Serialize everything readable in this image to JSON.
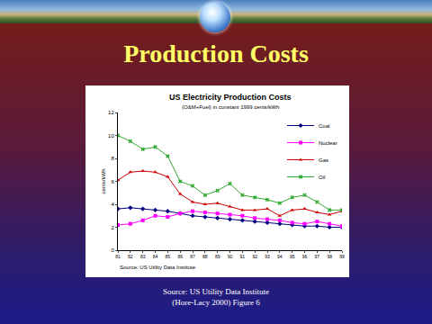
{
  "slide": {
    "title": "Production Costs",
    "source": [
      "Source: US Utility Data Institute",
      "(Hore-Lacy 2000)  Figure 6"
    ]
  },
  "chart_data": {
    "type": "line",
    "title": "US Electricity Production Costs",
    "subtitle": "(O&M+Fuel) in constant 1999 cents/kWh",
    "y_label": "cents/kWh",
    "annotations": [
      "Source: US Utility Data Institute"
    ],
    "x": [
      1981,
      1982,
      1983,
      1984,
      1985,
      1986,
      1987,
      1988,
      1989,
      1990,
      1991,
      1992,
      1993,
      1994,
      1995,
      1996,
      1997,
      1998,
      1999
    ],
    "series": [
      {
        "name": "Coal",
        "color": "#00007f",
        "marker": "diamond",
        "values": [
          3.6,
          3.7,
          3.6,
          3.5,
          3.4,
          3.2,
          3.0,
          2.9,
          2.8,
          2.7,
          2.6,
          2.5,
          2.4,
          2.3,
          2.2,
          2.1,
          2.1,
          2.0,
          2.0
        ]
      },
      {
        "name": "Nuclear",
        "color": "#ff00ff",
        "marker": "square",
        "values": [
          2.2,
          2.3,
          2.6,
          3.0,
          2.9,
          3.2,
          3.4,
          3.3,
          3.2,
          3.1,
          3.0,
          2.8,
          2.7,
          2.6,
          2.4,
          2.3,
          2.5,
          2.3,
          2.1
        ]
      },
      {
        "name": "Gas",
        "color": "#cc0000",
        "marker": "triangle-up",
        "values": [
          6.1,
          6.8,
          6.9,
          6.8,
          6.4,
          4.9,
          4.2,
          4.0,
          4.1,
          3.8,
          3.5,
          3.5,
          3.6,
          3.0,
          3.5,
          3.6,
          3.3,
          3.1,
          3.4
        ]
      },
      {
        "name": "Oil",
        "color": "#33aa33",
        "marker": "x",
        "values": [
          10.0,
          9.5,
          8.8,
          9.0,
          8.2,
          6.0,
          5.6,
          4.8,
          5.2,
          5.8,
          4.8,
          4.6,
          4.4,
          4.1,
          4.6,
          4.8,
          4.2,
          3.5,
          3.5
        ]
      }
    ],
    "xlim": [
      1981,
      1999
    ],
    "xticks": [
      {
        "value": 1981,
        "label": "81"
      },
      {
        "value": 1982,
        "label": "82"
      },
      {
        "value": 1983,
        "label": "83"
      },
      {
        "value": 1984,
        "label": "84"
      },
      {
        "value": 1985,
        "label": "85"
      },
      {
        "value": 1986,
        "label": "86"
      },
      {
        "value": 1987,
        "label": "87"
      },
      {
        "value": 1988,
        "label": "88"
      },
      {
        "value": 1989,
        "label": "89"
      },
      {
        "value": 1990,
        "label": "90"
      },
      {
        "value": 1991,
        "label": "91"
      },
      {
        "value": 1992,
        "label": "92"
      },
      {
        "value": 1993,
        "label": "93"
      },
      {
        "value": 1994,
        "label": "94"
      },
      {
        "value": 1995,
        "label": "95"
      },
      {
        "value": 1996,
        "label": "96"
      },
      {
        "value": 1997,
        "label": "97"
      },
      {
        "value": 1998,
        "label": "98"
      },
      {
        "value": 1999,
        "label": "99"
      }
    ],
    "ylim": [
      0,
      12
    ],
    "yticks": [
      0,
      2,
      4,
      6,
      8,
      10,
      12
    ],
    "grid": false,
    "legend": "top-right"
  }
}
